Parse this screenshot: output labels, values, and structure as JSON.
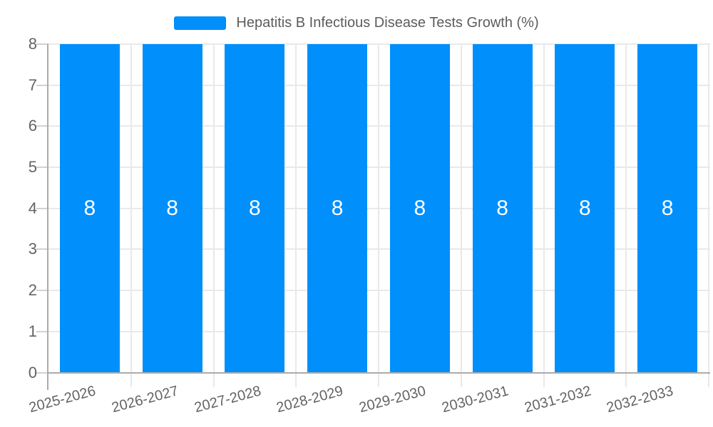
{
  "legend": {
    "label": "Hepatitis B Infectious Disease Tests Growth (%)"
  },
  "chart_data": {
    "type": "bar",
    "title": "Hepatitis B Infectious Disease Tests Growth (%)",
    "categories": [
      "2025-2026",
      "2026-2027",
      "2027-2028",
      "2028-2029",
      "2029-2030",
      "2030-2031",
      "2031-2032",
      "2032-2033"
    ],
    "values": [
      8,
      8,
      8,
      8,
      8,
      8,
      8,
      8
    ],
    "data_labels": [
      "8",
      "8",
      "8",
      "8",
      "8",
      "8",
      "8",
      "8"
    ],
    "xlabel": "",
    "ylabel": "",
    "ylim": [
      0,
      8
    ],
    "yticks": [
      0,
      1,
      2,
      3,
      4,
      5,
      6,
      7,
      8
    ],
    "grid": true,
    "legend_position": "top",
    "x_label_rotation_deg": -15,
    "colors": {
      "bar": "#008FFB",
      "bar_label": "#FFFFFF",
      "gridline": "#E9E9E9",
      "axis_line": "#ABABAB",
      "tick": "#D2D2D2",
      "tick_label": "#636363",
      "legend_text": "#5C5C5C",
      "background": "#FFFFFF"
    }
  }
}
